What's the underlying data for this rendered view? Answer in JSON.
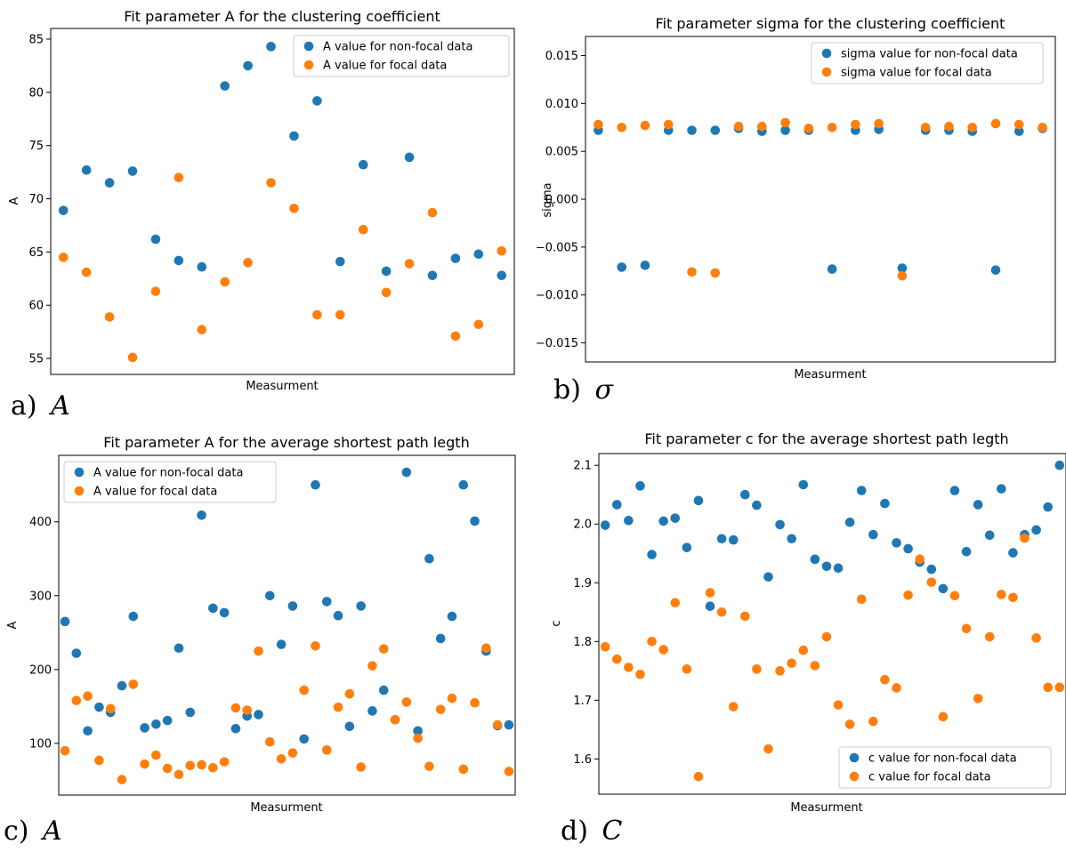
{
  "chart_data": [
    {
      "type": "scatter",
      "panel_letter": "a)",
      "panel_symbol": "A",
      "title": "Fit parameter A for the clustering coefficient",
      "xlabel": "Measurment",
      "ylabel": "A",
      "ylim": [
        53.5,
        86
      ],
      "yticks": [
        55,
        60,
        65,
        70,
        75,
        80,
        85
      ],
      "ytick_labels": [
        "55",
        "60",
        "65",
        "70",
        "75",
        "80",
        "85"
      ],
      "legend_position": "top-right",
      "series": [
        {
          "name": "A value for non-focal data",
          "color": "#1f77b4",
          "x": [
            1,
            2,
            3,
            4,
            5,
            6,
            7,
            8,
            9,
            10,
            11,
            12,
            13,
            14,
            15,
            16,
            17,
            18,
            19,
            20
          ],
          "values": [
            68.9,
            72.7,
            71.5,
            72.6,
            66.2,
            64.2,
            63.6,
            80.6,
            82.5,
            84.3,
            75.9,
            79.2,
            64.1,
            73.2,
            63.2,
            73.9,
            62.8,
            64.4,
            64.8,
            62.8
          ]
        },
        {
          "name": "A value for focal data",
          "color": "#ff7f0e",
          "x": [
            1,
            2,
            3,
            4,
            5,
            6,
            7,
            8,
            9,
            10,
            11,
            12,
            13,
            14,
            15,
            16,
            17,
            18,
            19,
            20
          ],
          "values": [
            64.5,
            63.1,
            58.9,
            55.1,
            61.3,
            72.0,
            57.7,
            62.2,
            64.0,
            71.5,
            69.1,
            59.1,
            59.1,
            67.1,
            61.2,
            63.9,
            68.7,
            57.1,
            58.2,
            65.1
          ]
        }
      ]
    },
    {
      "type": "scatter",
      "panel_letter": "b)",
      "panel_symbol": "σ",
      "title": "Fit parameter sigma for the clustering coefficient",
      "xlabel": "Measurment",
      "ylabel": "sigma",
      "ylim": [
        -0.017,
        0.017
      ],
      "yticks": [
        -0.015,
        -0.01,
        -0.005,
        0.0,
        0.005,
        0.01,
        0.015
      ],
      "ytick_labels": [
        "−0.015",
        "−0.010",
        "−0.005",
        "0.000",
        "0.005",
        "0.010",
        "0.015"
      ],
      "legend_position": "top-right",
      "series": [
        {
          "name": "sigma value for non-focal data",
          "color": "#1f77b4",
          "x": [
            1,
            2,
            3,
            4,
            5,
            6,
            7,
            8,
            9,
            10,
            11,
            12,
            13,
            14,
            15,
            16,
            17,
            18,
            19,
            20
          ],
          "values": [
            0.0072,
            -0.0071,
            -0.0069,
            0.0072,
            0.0072,
            0.0072,
            0.0074,
            0.0071,
            0.0072,
            0.0072,
            -0.0073,
            0.0072,
            0.0073,
            -0.0072,
            0.0072,
            0.0072,
            0.0071,
            -0.0074,
            0.0071,
            0.0074
          ]
        },
        {
          "name": "sigma value for focal data",
          "color": "#ff7f0e",
          "x": [
            1,
            2,
            3,
            4,
            5,
            6,
            7,
            8,
            9,
            10,
            11,
            12,
            13,
            14,
            15,
            16,
            17,
            18,
            19,
            20
          ],
          "values": [
            0.0078,
            0.0075,
            0.0077,
            0.0078,
            -0.0076,
            -0.0077,
            0.0076,
            0.0076,
            0.008,
            0.0074,
            0.0075,
            0.0078,
            0.0079,
            -0.008,
            0.0075,
            0.0076,
            0.0075,
            0.0079,
            0.0078,
            0.0075
          ]
        }
      ]
    },
    {
      "type": "scatter",
      "panel_letter": "c)",
      "panel_symbol": "A",
      "title": "Fit parameter A for the average shortest path legth",
      "xlabel": "Measurment",
      "ylabel": "A",
      "ylim": [
        30,
        490
      ],
      "yticks": [
        100,
        200,
        300,
        400
      ],
      "ytick_labels": [
        "100",
        "200",
        "300",
        "400"
      ],
      "legend_position": "top-left",
      "series": [
        {
          "name": "A value for non-focal data",
          "color": "#1f77b4",
          "x": [
            1,
            2,
            3,
            4,
            5,
            6,
            7,
            8,
            9,
            10,
            11,
            12,
            13,
            14,
            15,
            16,
            17,
            18,
            19,
            20,
            21,
            22,
            23,
            24,
            25,
            26,
            27,
            28,
            29,
            30,
            31,
            32,
            33,
            34,
            35,
            36,
            37,
            38,
            39,
            40
          ],
          "values": [
            265,
            222,
            117,
            149,
            142,
            178,
            272,
            121,
            126,
            131,
            229,
            142,
            409,
            283,
            277,
            120,
            137,
            139,
            300,
            234,
            286,
            106,
            450,
            292,
            273,
            123,
            286,
            144,
            172,
            132,
            467,
            117,
            350,
            242,
            272,
            450,
            401,
            225,
            124,
            125
          ]
        },
        {
          "name": "A value for focal data",
          "color": "#ff7f0e",
          "x": [
            1,
            2,
            3,
            4,
            5,
            6,
            7,
            8,
            9,
            10,
            11,
            12,
            13,
            14,
            15,
            16,
            17,
            18,
            19,
            20,
            21,
            22,
            23,
            24,
            25,
            26,
            27,
            28,
            29,
            30,
            31,
            32,
            33,
            34,
            35,
            36,
            37,
            38,
            39,
            40
          ],
          "values": [
            90,
            158,
            164,
            77,
            147,
            51,
            180,
            72,
            84,
            66,
            58,
            70,
            71,
            67,
            75,
            148,
            145,
            225,
            102,
            79,
            87,
            172,
            232,
            91,
            149,
            167,
            68,
            205,
            228,
            132,
            156,
            107,
            69,
            146,
            161,
            65,
            155,
            229,
            125,
            62
          ]
        }
      ]
    },
    {
      "type": "scatter",
      "panel_letter": "d)",
      "panel_symbol": "C",
      "title": "Fit parameter c for the average shortest path legth",
      "xlabel": "Measurment",
      "ylabel": "c",
      "ylim": [
        1.54,
        2.12
      ],
      "yticks": [
        1.6,
        1.7,
        1.8,
        1.9,
        2.0,
        2.1
      ],
      "ytick_labels": [
        "1.6",
        "1.7",
        "1.8",
        "1.9",
        "2.0",
        "2.1"
      ],
      "legend_position": "bottom-right",
      "series": [
        {
          "name": "c value for non-focal data",
          "color": "#1f77b4",
          "x": [
            1,
            2,
            3,
            4,
            5,
            6,
            7,
            8,
            9,
            10,
            11,
            12,
            13,
            14,
            15,
            16,
            17,
            18,
            19,
            20,
            21,
            22,
            23,
            24,
            25,
            26,
            27,
            28,
            29,
            30,
            31,
            32,
            33,
            34,
            35,
            36,
            37,
            38,
            39,
            40
          ],
          "values": [
            1.998,
            2.033,
            2.006,
            2.065,
            1.948,
            2.005,
            2.01,
            1.96,
            2.04,
            1.86,
            1.975,
            1.973,
            2.05,
            2.032,
            1.91,
            1.999,
            1.975,
            2.067,
            1.94,
            1.928,
            1.925,
            2.003,
            2.057,
            1.982,
            2.035,
            1.968,
            1.958,
            1.935,
            1.923,
            1.89,
            2.057,
            1.953,
            2.033,
            1.981,
            2.06,
            1.951,
            1.982,
            1.99,
            2.029,
            2.1
          ]
        },
        {
          "name": "c value for focal data",
          "color": "#ff7f0e",
          "x": [
            1,
            2,
            3,
            4,
            5,
            6,
            7,
            8,
            9,
            10,
            11,
            12,
            13,
            14,
            15,
            16,
            17,
            18,
            19,
            20,
            21,
            22,
            23,
            24,
            25,
            26,
            27,
            28,
            29,
            30,
            31,
            32,
            33,
            34,
            35,
            36,
            37,
            38,
            39,
            40
          ],
          "values": [
            1.791,
            1.77,
            1.756,
            1.744,
            1.8,
            1.786,
            1.866,
            1.753,
            1.57,
            1.883,
            1.85,
            1.689,
            1.843,
            1.753,
            1.617,
            1.75,
            1.763,
            1.785,
            1.759,
            1.808,
            1.692,
            1.659,
            1.872,
            1.664,
            1.735,
            1.721,
            1.879,
            1.94,
            1.901,
            1.672,
            1.878,
            1.822,
            1.703,
            1.808,
            1.88,
            1.875,
            1.976,
            1.806,
            1.722,
            1.722
          ]
        }
      ]
    }
  ]
}
